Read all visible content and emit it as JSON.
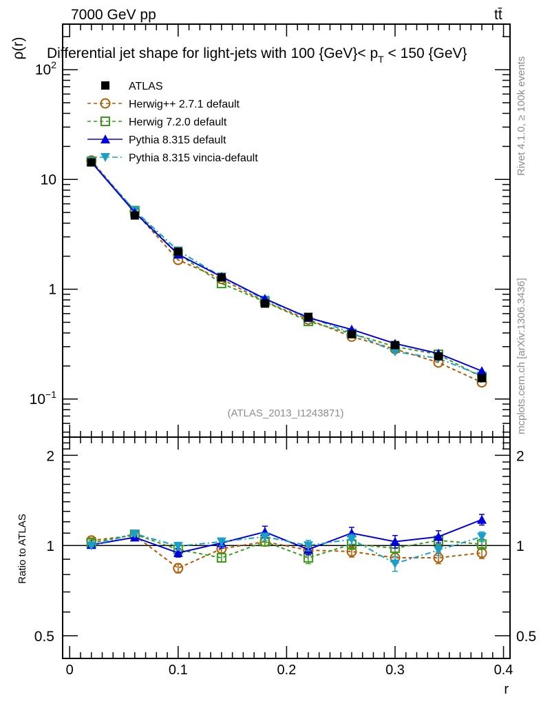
{
  "header": {
    "left": "7000 GeV pp",
    "right": "tt̄"
  },
  "side_labels": {
    "top": "Rivet 4.1.0, ≥ 100k events",
    "bottom": "mcplots.cern.ch [arXiv:1306.3436]"
  },
  "watermark": "(ATLAS_2013_I1243871)",
  "chart_data": [
    {
      "type": "line",
      "panel": "main",
      "title": "Differential jet shape for light-jets with 100 {GeV}< p_T < 150 {GeV}",
      "title_parts": {
        "pre": "Differential jet shape for light-jets with 100 {GeV}< p",
        "sub": "T",
        "post": " < 150 {GeV}"
      },
      "xlabel": "r",
      "ylabel": "ρ(r)",
      "yscale": "log",
      "xlim": [
        -0.0065,
        0.406
      ],
      "ylim": [
        0.045,
        260
      ],
      "grid": false,
      "legend_position": "top-left",
      "y_ticks": [
        {
          "value": 100,
          "base": "10",
          "exp": "2"
        },
        {
          "value": 10,
          "base": "10",
          "exp": ""
        },
        {
          "value": 1,
          "base": "1",
          "exp": ""
        },
        {
          "value": 0.1,
          "base": "10",
          "exp": "−1"
        }
      ],
      "x": [
        0.02,
        0.06,
        0.1,
        0.14,
        0.18,
        0.22,
        0.26,
        0.3,
        0.34,
        0.38
      ],
      "series": [
        {
          "name": "ATLAS",
          "color": "#000000",
          "marker": "square-filled",
          "line": "none",
          "values": [
            14.3,
            4.7,
            2.2,
            1.28,
            0.74,
            0.56,
            0.39,
            0.31,
            0.245,
            0.155
          ]
        },
        {
          "name": "Herwig++ 2.7.1 default",
          "color": "#b35900",
          "marker": "circle-open",
          "line": "dashed",
          "values": [
            14.9,
            5.1,
            1.85,
            1.24,
            0.77,
            0.53,
            0.37,
            0.285,
            0.215,
            0.142
          ]
        },
        {
          "name": "Herwig 7.2.0 default",
          "color": "#3a9a1a",
          "marker": "square-open",
          "line": "dashed",
          "values": [
            14.6,
            5.2,
            2.1,
            1.13,
            0.77,
            0.51,
            0.395,
            0.3,
            0.255,
            0.158
          ]
        },
        {
          "name": "Pythia 8.315 default",
          "color": "#0000e0",
          "marker": "triangle-up",
          "line": "solid",
          "values": [
            14.4,
            5.0,
            2.08,
            1.3,
            0.82,
            0.55,
            0.43,
            0.32,
            0.26,
            0.18
          ]
        },
        {
          "name": "Pythia 8.315 vincia-default",
          "color": "#1aa0c8",
          "marker": "triangle-down",
          "line": "dashdot",
          "values": [
            14.4,
            5.2,
            2.25,
            1.3,
            0.8,
            0.56,
            0.4,
            0.27,
            0.235,
            0.163
          ]
        }
      ]
    },
    {
      "type": "line",
      "panel": "ratio",
      "ylabel": "Ratio to ATLAS",
      "xlabel": "r",
      "yscale": "log",
      "xlim": [
        -0.0065,
        0.406
      ],
      "ylim": [
        0.42,
        2.3
      ],
      "grid": false,
      "y_ticks": [
        {
          "value": 2,
          "label": "2"
        },
        {
          "value": 1,
          "label": "1"
        },
        {
          "value": 0.5,
          "label": "0.5"
        }
      ],
      "x_ticks": [
        {
          "value": 0,
          "label": "0"
        },
        {
          "value": 0.1,
          "label": "0.1"
        },
        {
          "value": 0.2,
          "label": "0.2"
        },
        {
          "value": 0.3,
          "label": "0.3"
        },
        {
          "value": 0.4,
          "label": "0.4"
        }
      ],
      "x": [
        0.02,
        0.06,
        0.1,
        0.14,
        0.18,
        0.22,
        0.26,
        0.3,
        0.34,
        0.38
      ],
      "series": [
        {
          "name": "Herwig++ 2.7.1 default",
          "color": "#b35900",
          "line": "dashed",
          "marker": "circle-open",
          "values": [
            1.04,
            1.08,
            0.84,
            0.975,
            1.03,
            0.965,
            0.955,
            0.91,
            0.91,
            0.945
          ],
          "errors": [
            0.02,
            0.02,
            0.03,
            0.03,
            0.03,
            0.03,
            0.04,
            0.04,
            0.04,
            0.04
          ]
        },
        {
          "name": "Herwig 7.2.0 default",
          "color": "#3a9a1a",
          "line": "dashed",
          "marker": "square-open",
          "values": [
            1.02,
            1.09,
            0.97,
            0.91,
            1.03,
            0.91,
            1.01,
            0.98,
            1.04,
            1.01
          ],
          "errors": [
            0.02,
            0.02,
            0.03,
            0.03,
            0.03,
            0.04,
            0.04,
            0.04,
            0.04,
            0.04
          ]
        },
        {
          "name": "Pythia 8.315 default",
          "color": "#0000e0",
          "line": "solid",
          "marker": "triangle-up",
          "values": [
            1.005,
            1.065,
            0.945,
            1.02,
            1.11,
            0.97,
            1.1,
            1.03,
            1.07,
            1.22
          ],
          "errors": [
            0.01,
            0.02,
            0.03,
            0.04,
            0.05,
            0.04,
            0.05,
            0.05,
            0.05,
            0.05
          ]
        },
        {
          "name": "Pythia 8.315 vincia-default",
          "color": "#1aa0c8",
          "line": "dashdot",
          "marker": "triangle-down",
          "values": [
            1.0,
            1.095,
            0.995,
            1.03,
            1.07,
            1.0,
            1.05,
            0.87,
            0.965,
            1.07
          ],
          "errors": [
            0.01,
            0.02,
            0.03,
            0.03,
            0.03,
            0.04,
            0.04,
            0.05,
            0.04,
            0.04
          ]
        }
      ]
    }
  ]
}
